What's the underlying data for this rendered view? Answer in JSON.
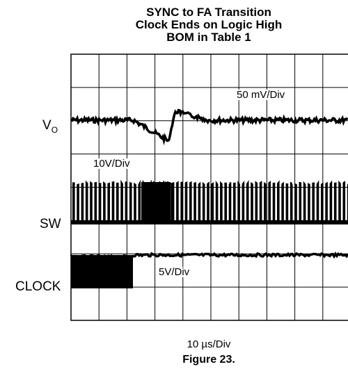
{
  "chart_data": {
    "type": "line",
    "title_lines": [
      "SYNC to FA Transition",
      "Clock Ends on Logic High",
      "BOM in Table 1"
    ],
    "x_scale": "10 µs/Div",
    "grid": true,
    "grid_divisions": {
      "x": 10,
      "y": 8
    },
    "series": [
      {
        "name": "VO",
        "name_main": "V",
        "name_sub": "O",
        "scale": "50 mV/Div",
        "behavior": "steady level with a dip near div 2.2–3.5, recovering just after the transition"
      },
      {
        "name": "SW",
        "scale": "10V/Div",
        "behavior": "switching pulses; dense burst near divs 2.5–3.5"
      },
      {
        "name": "CLOCK",
        "scale": "5V/Div",
        "behavior": "clock pulses until ~div 2.2, then held at logic high"
      }
    ],
    "caption": "Figure 23."
  },
  "colors": {
    "trace": "#000000",
    "grid": "#000000",
    "background": "#ffffff"
  }
}
